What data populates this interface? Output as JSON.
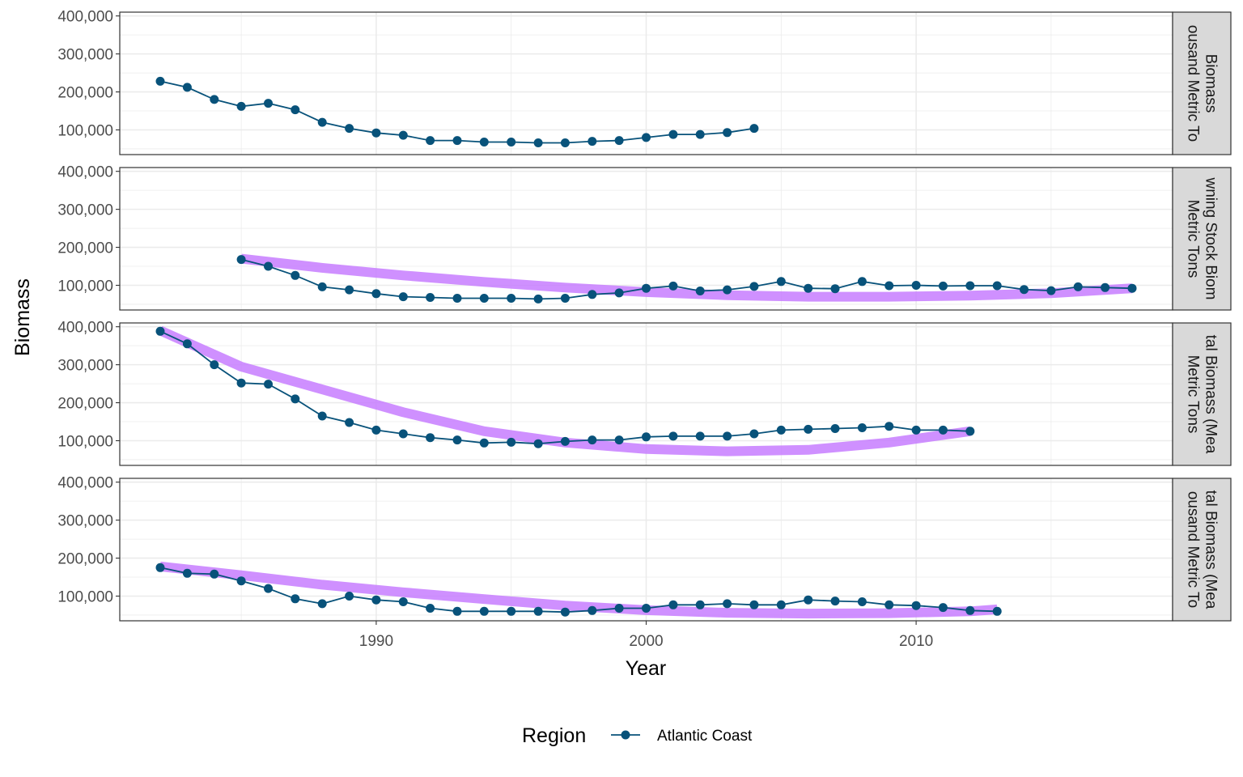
{
  "chart_data": {
    "type": "line",
    "xlabel": "Year",
    "ylabel": "Biomass",
    "xlim": [
      1980.5,
      2019.5
    ],
    "x_ticks": [
      1990,
      2000,
      2010
    ],
    "x_tick_labels": [
      "1990",
      "2000",
      "2010"
    ],
    "ylim": [
      35000,
      410000
    ],
    "y_ticks": [
      100000,
      200000,
      300000,
      400000
    ],
    "y_tick_labels": [
      "100,000",
      "200,000",
      "300,000",
      "400,000"
    ],
    "grid": true,
    "legend": {
      "position": "bottom",
      "title": "Region",
      "entries": [
        "Atlantic Coast"
      ]
    },
    "colors": {
      "series": "#08527a",
      "trend": "#c77cff",
      "strip_bg": "#d9d9d9",
      "grid": "#ebebeb"
    },
    "panels": [
      {
        "strip_lines": [
          "Biomass",
          "ousand Metric To"
        ],
        "series": [
          {
            "name": "Atlantic Coast",
            "x": [
              1982,
              1983,
              1984,
              1985,
              1986,
              1987,
              1988,
              1989,
              1990,
              1991,
              1992,
              1993,
              1994,
              1995,
              1996,
              1997,
              1998,
              1999,
              2000,
              2001,
              2002,
              2003,
              2004
            ],
            "y": [
              228000,
              212000,
              180000,
              162000,
              170000,
              153000,
              120000,
              104000,
              92000,
              86000,
              72000,
              72000,
              68000,
              68000,
              66000,
              66000,
              70000,
              72000,
              80000,
              88000,
              88000,
              93000,
              104000
            ]
          }
        ],
        "trend": null
      },
      {
        "strip_lines": [
          "wning Stock Biom",
          "Metric Tons"
        ],
        "series": [
          {
            "name": "Atlantic Coast",
            "x": [
              1985,
              1986,
              1987,
              1988,
              1989,
              1990,
              1991,
              1992,
              1993,
              1994,
              1995,
              1996,
              1997,
              1998,
              1999,
              2000,
              2001,
              2002,
              2003,
              2004,
              2005,
              2006,
              2007,
              2008,
              2009,
              2010,
              2011,
              2012,
              2013,
              2014,
              2015,
              2016,
              2017,
              2018
            ],
            "y": [
              168000,
              150000,
              126000,
              96000,
              88000,
              78000,
              70000,
              68000,
              66000,
              66000,
              66000,
              64000,
              66000,
              76000,
              80000,
              92000,
              98000,
              85000,
              88000,
              97000,
              110000,
              92000,
              91000,
              110000,
              99000,
              100000,
              98000,
              99000,
              99000,
              89000,
              86000,
              96000,
              94000,
              92000
            ]
          }
        ],
        "trend": {
          "x": [
            1985,
            1988,
            1991,
            1994,
            1997,
            2000,
            2003,
            2006,
            2009,
            2012,
            2015,
            2018
          ],
          "y": [
            170000,
            146000,
            126000,
            109000,
            94000,
            82000,
            74000,
            70000,
            70000,
            73000,
            79000,
            92000
          ]
        }
      },
      {
        "strip_lines": [
          "tal Biomass (Mea",
          "Metric Tons"
        ],
        "series": [
          {
            "name": "Atlantic Coast",
            "x": [
              1982,
              1983,
              1984,
              1985,
              1986,
              1987,
              1988,
              1989,
              1990,
              1991,
              1992,
              1993,
              1994,
              1995,
              1996,
              1997,
              1998,
              1999,
              2000,
              2001,
              2002,
              2003,
              2004,
              2005,
              2006,
              2007,
              2008,
              2009,
              2010,
              2011,
              2012
            ],
            "y": [
              388000,
              355000,
              300000,
              252000,
              249000,
              210000,
              165000,
              148000,
              128000,
              118000,
              108000,
              102000,
              94000,
              96000,
              92000,
              98000,
              102000,
              102000,
              110000,
              112000,
              112000,
              112000,
              118000,
              128000,
              130000,
              132000,
              134000,
              138000,
              128000,
              128000,
              125000
            ]
          }
        ],
        "trend": {
          "x": [
            1982,
            1985,
            1988,
            1991,
            1994,
            1997,
            2000,
            2003,
            2006,
            2009,
            2012
          ],
          "y": [
            390000,
            295000,
            235000,
            175000,
            125000,
            95000,
            78000,
            72000,
            76000,
            95000,
            125000
          ]
        }
      },
      {
        "strip_lines": [
          "tal Biomass (Mea",
          "ousand Metric To"
        ],
        "series": [
          {
            "name": "Atlantic Coast",
            "x": [
              1982,
              1983,
              1984,
              1985,
              1986,
              1987,
              1988,
              1989,
              1990,
              1991,
              1992,
              1993,
              1994,
              1995,
              1996,
              1997,
              1998,
              1999,
              2000,
              2001,
              2002,
              2003,
              2004,
              2005,
              2006,
              2007,
              2008,
              2009,
              2010,
              2011,
              2012,
              2013
            ],
            "y": [
              175000,
              160000,
              158000,
              140000,
              120000,
              93000,
              80000,
              100000,
              90000,
              85000,
              68000,
              60000,
              60000,
              60000,
              60000,
              58000,
              62000,
              68000,
              68000,
              77000,
              77000,
              80000,
              77000,
              77000,
              90000,
              87000,
              85000,
              77000,
              75000,
              70000,
              62000,
              60000
            ]
          }
        ],
        "trend": {
          "x": [
            1982,
            1985,
            1988,
            1991,
            1994,
            1997,
            2000,
            2003,
            2006,
            2009,
            2012,
            2013
          ],
          "y": [
            178000,
            155000,
            130000,
            110000,
            92000,
            75000,
            63000,
            56000,
            54000,
            55000,
            60000,
            65000
          ]
        }
      }
    ]
  }
}
